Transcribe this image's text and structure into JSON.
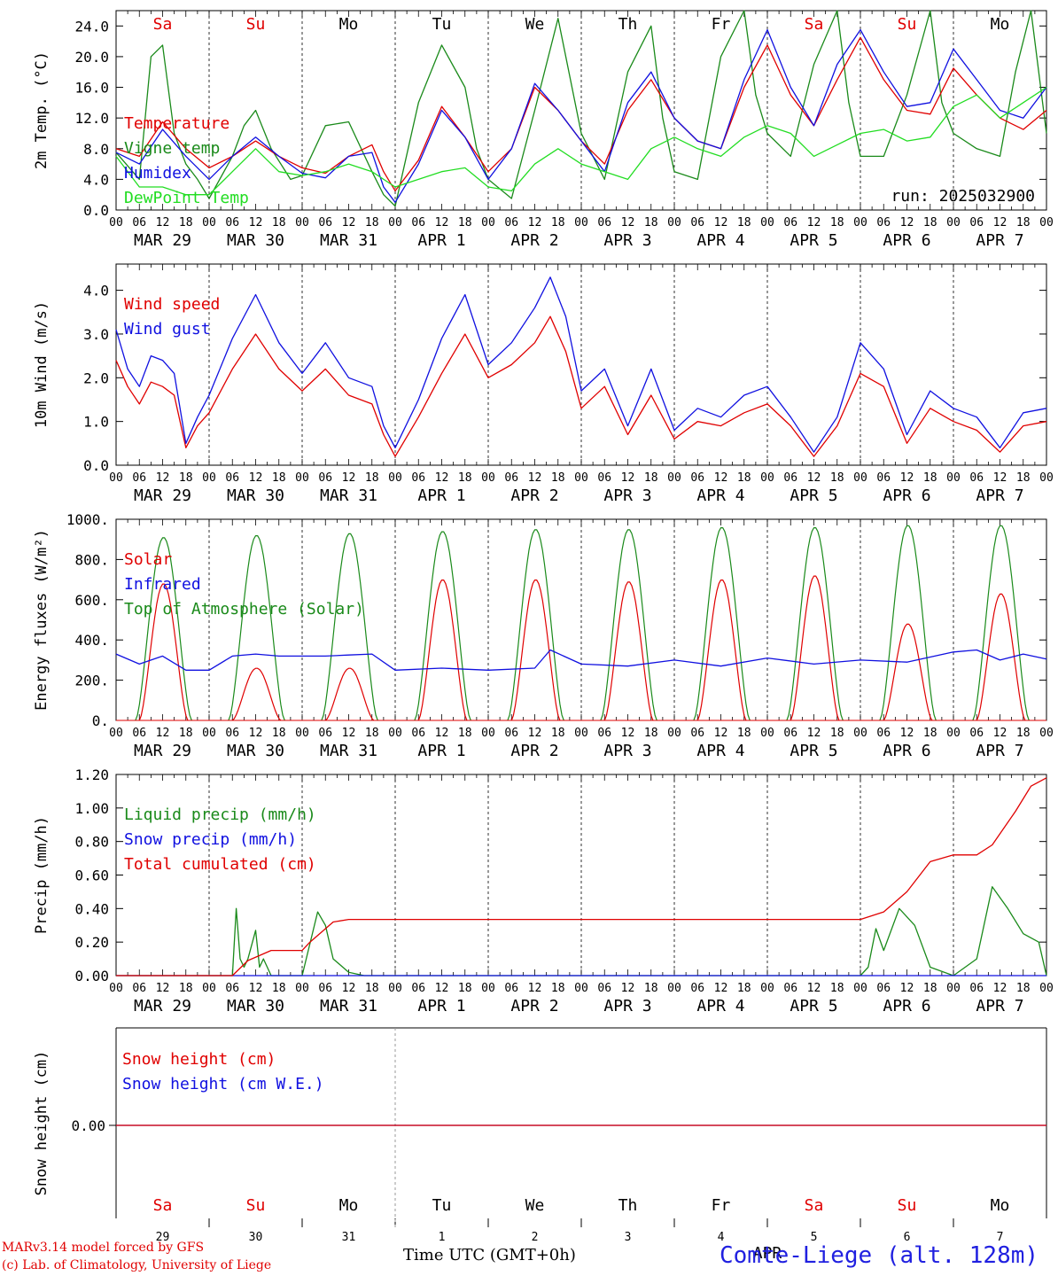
{
  "colors": {
    "red": "#e00000",
    "blue": "#1010e0",
    "darkgreen": "#1a8a1a",
    "lightgreen": "#22dd22",
    "weekend": "#e00000",
    "weekday": "#000000"
  },
  "run_label": "run: 2025032900",
  "hour_ticks": [
    "00",
    "06",
    "12",
    "18"
  ],
  "day_labels": [
    "MAR 29",
    "MAR 30",
    "MAR 31",
    "APR  1",
    "APR  2",
    "APR  3",
    "APR  4",
    "APR  5",
    "APR  6",
    "APR  7"
  ],
  "weekday_labels": [
    "Sa",
    "Su",
    "Mo",
    "Tu",
    "We",
    "Th",
    "Fr",
    "Sa",
    "Su",
    "Mo"
  ],
  "weekend_flags": [
    true,
    true,
    false,
    false,
    false,
    false,
    false,
    true,
    true,
    false
  ],
  "day_numbers": [
    "29",
    "30",
    "31",
    "1",
    "2",
    "3",
    "4",
    "5",
    "6",
    "7"
  ],
  "month_label": "APR",
  "xlabel": "Time UTC (GMT+0h)",
  "footer": {
    "line1": "MARv3.14 model forced by GFS",
    "line2": "(c) Lab. of Climatology, University of Liege",
    "station": "Comte-Liege (alt. 128m)"
  },
  "chart_data": [
    {
      "type": "line",
      "ylabel": "2m Temp. (°C)",
      "ylim": [
        0,
        26
      ],
      "yticks": [
        "0.0",
        "4.0",
        "8.0",
        "12.0",
        "16.0",
        "20.0",
        "24.0"
      ],
      "x_unit": "hours since 2025-03-29 00 UTC",
      "series": [
        {
          "name": "Vigne temp",
          "color": "darkgreen",
          "x": [
            0,
            6,
            9,
            12,
            15,
            18,
            21,
            24,
            30,
            33,
            36,
            40,
            45,
            48,
            54,
            60,
            66,
            69,
            72,
            78,
            84,
            90,
            93,
            96,
            102,
            108,
            114,
            120,
            126,
            132,
            138,
            141,
            144,
            150,
            156,
            162,
            165,
            168,
            174,
            180,
            186,
            189,
            192,
            198,
            204,
            210,
            213,
            216,
            222,
            228,
            232,
            236,
            240
          ],
          "y": [
            7.5,
            4.0,
            20.0,
            21.5,
            10.0,
            6.0,
            4.0,
            1.5,
            7.0,
            11.0,
            13.0,
            8.0,
            4.0,
            4.5,
            11.0,
            11.5,
            5.0,
            2.0,
            0.5,
            14.0,
            21.5,
            16.0,
            8.0,
            4.0,
            1.5,
            13.0,
            25.0,
            10.0,
            4.0,
            18.0,
            24.0,
            12.0,
            5.0,
            4.0,
            20.0,
            26.0,
            15.0,
            10.0,
            7.0,
            19.0,
            26.0,
            14.0,
            7.0,
            7.0,
            15.0,
            26.0,
            14.0,
            10.0,
            8.0,
            7.0,
            18.0,
            26.0,
            10.0
          ]
        },
        {
          "name": "Temperature",
          "color": "red",
          "x": [
            0,
            6,
            12,
            18,
            24,
            30,
            36,
            42,
            48,
            54,
            60,
            66,
            69,
            72,
            78,
            84,
            90,
            96,
            102,
            108,
            114,
            120,
            126,
            132,
            138,
            144,
            150,
            156,
            162,
            168,
            174,
            180,
            186,
            192,
            198,
            204,
            210,
            216,
            222,
            228,
            234,
            240
          ],
          "y": [
            8.0,
            7.0,
            11.5,
            8.0,
            5.5,
            7.0,
            9.0,
            7.0,
            5.5,
            4.8,
            7.0,
            8.5,
            5.0,
            2.5,
            6.5,
            13.5,
            9.5,
            5.0,
            8.0,
            16.0,
            13.0,
            9.0,
            6.0,
            13.0,
            17.0,
            12.0,
            9.0,
            8.0,
            16.0,
            21.5,
            15.0,
            11.0,
            17.0,
            22.5,
            17.0,
            13.0,
            12.5,
            18.5,
            15.0,
            12.0,
            10.5,
            13.0
          ]
        },
        {
          "name": "Humidex",
          "color": "blue",
          "x": [
            0,
            6,
            12,
            18,
            24,
            30,
            36,
            42,
            48,
            54,
            60,
            66,
            69,
            72,
            78,
            84,
            90,
            96,
            102,
            108,
            114,
            120,
            126,
            132,
            138,
            144,
            150,
            156,
            162,
            168,
            174,
            180,
            186,
            192,
            198,
            204,
            210,
            216,
            222,
            228,
            234,
            240
          ],
          "y": [
            7.5,
            6.0,
            10.5,
            7.0,
            4.0,
            7.0,
            9.5,
            7.0,
            4.8,
            4.2,
            7.0,
            7.5,
            3.0,
            1.0,
            6.0,
            13.0,
            9.5,
            4.0,
            8.0,
            16.5,
            13.0,
            9.0,
            5.0,
            14.0,
            18.0,
            12.0,
            9.0,
            8.0,
            17.0,
            23.5,
            16.0,
            11.0,
            19.0,
            23.5,
            18.0,
            13.5,
            14.0,
            21.0,
            17.0,
            13.0,
            12.0,
            16.0
          ]
        },
        {
          "name": "DewPoint Temp",
          "color": "lightgreen",
          "x": [
            0,
            6,
            12,
            18,
            24,
            30,
            36,
            42,
            48,
            54,
            60,
            66,
            72,
            78,
            84,
            90,
            96,
            102,
            108,
            114,
            120,
            126,
            132,
            138,
            144,
            150,
            156,
            162,
            168,
            174,
            180,
            186,
            192,
            198,
            204,
            210,
            216,
            222,
            228,
            234,
            240
          ],
          "y": [
            7.0,
            3.0,
            3.0,
            2.0,
            2.0,
            5.0,
            8.0,
            5.0,
            4.5,
            5.0,
            6.0,
            5.0,
            3.0,
            4.0,
            5.0,
            5.5,
            3.0,
            2.5,
            6.0,
            8.0,
            6.0,
            5.0,
            4.0,
            8.0,
            9.5,
            8.0,
            7.0,
            9.5,
            11.0,
            10.0,
            7.0,
            8.5,
            10.0,
            10.5,
            9.0,
            9.5,
            13.5,
            15.0,
            12.0,
            14.0,
            16.0
          ]
        }
      ]
    },
    {
      "type": "line",
      "ylabel": "10m Wind (m/s)",
      "ylim": [
        0,
        4.6
      ],
      "yticks": [
        "0.0",
        "1.0",
        "2.0",
        "3.0",
        "4.0"
      ],
      "x_unit": "hours since 2025-03-29 00 UTC",
      "series": [
        {
          "name": "Wind speed",
          "color": "red",
          "x": [
            0,
            3,
            6,
            9,
            12,
            15,
            18,
            21,
            24,
            30,
            36,
            42,
            48,
            54,
            60,
            66,
            69,
            72,
            78,
            84,
            90,
            96,
            102,
            108,
            112,
            116,
            120,
            126,
            132,
            138,
            144,
            150,
            156,
            162,
            168,
            174,
            180,
            186,
            192,
            198,
            204,
            210,
            216,
            222,
            228,
            234,
            240
          ],
          "y": [
            2.4,
            1.8,
            1.4,
            1.9,
            1.8,
            1.6,
            0.4,
            0.9,
            1.2,
            2.2,
            3.0,
            2.2,
            1.7,
            2.2,
            1.6,
            1.4,
            0.7,
            0.2,
            1.1,
            2.1,
            3.0,
            2.0,
            2.3,
            2.8,
            3.4,
            2.6,
            1.3,
            1.8,
            0.7,
            1.6,
            0.6,
            1.0,
            0.9,
            1.2,
            1.4,
            0.9,
            0.2,
            0.9,
            2.1,
            1.8,
            0.5,
            1.3,
            1.0,
            0.8,
            0.3,
            0.9,
            1.0
          ]
        },
        {
          "name": "Wind gust",
          "color": "blue",
          "x": [
            0,
            3,
            6,
            9,
            12,
            15,
            18,
            21,
            24,
            30,
            36,
            42,
            48,
            54,
            60,
            66,
            69,
            72,
            78,
            84,
            90,
            96,
            102,
            108,
            112,
            116,
            120,
            126,
            132,
            138,
            144,
            150,
            156,
            162,
            168,
            174,
            180,
            186,
            192,
            198,
            204,
            210,
            216,
            222,
            228,
            234,
            240
          ],
          "y": [
            3.1,
            2.2,
            1.8,
            2.5,
            2.4,
            2.1,
            0.5,
            1.1,
            1.6,
            2.9,
            3.9,
            2.8,
            2.1,
            2.8,
            2.0,
            1.8,
            0.9,
            0.4,
            1.5,
            2.9,
            3.9,
            2.3,
            2.8,
            3.6,
            4.3,
            3.4,
            1.7,
            2.2,
            0.9,
            2.2,
            0.8,
            1.3,
            1.1,
            1.6,
            1.8,
            1.1,
            0.3,
            1.1,
            2.8,
            2.2,
            0.7,
            1.7,
            1.3,
            1.1,
            0.4,
            1.2,
            1.3
          ]
        }
      ]
    },
    {
      "type": "line",
      "ylabel": "Energy fluxes (W/m²)",
      "ylim": [
        0,
        1000
      ],
      "yticks": [
        "0.",
        "200.",
        "400.",
        "600.",
        "800.",
        "1000."
      ],
      "x_unit": "hours since 2025-03-29 00 UTC",
      "series": [
        {
          "name": "Solar",
          "color": "red",
          "peaks": [
            680,
            260,
            260,
            700,
            700,
            690,
            700,
            720,
            480,
            630
          ]
        },
        {
          "name": "Infrared",
          "color": "blue",
          "x": [
            0,
            6,
            12,
            18,
            24,
            30,
            36,
            42,
            48,
            54,
            60,
            66,
            72,
            84,
            96,
            108,
            112,
            120,
            132,
            144,
            156,
            168,
            180,
            192,
            204,
            216,
            222,
            228,
            234,
            240
          ],
          "y": [
            330,
            280,
            320,
            250,
            250,
            320,
            330,
            320,
            320,
            320,
            325,
            330,
            250,
            260,
            250,
            260,
            350,
            280,
            270,
            300,
            270,
            310,
            280,
            300,
            290,
            340,
            350,
            300,
            330,
            305
          ]
        },
        {
          "name": "Top of Atmosphere (Solar)",
          "color": "darkgreen",
          "peaks": [
            910,
            920,
            930,
            940,
            950,
            950,
            960,
            960,
            970,
            970
          ]
        }
      ]
    },
    {
      "type": "line",
      "ylabel": "Precip (mm/h)",
      "ylim": [
        0,
        1.2
      ],
      "yticks": [
        "0.00",
        "0.20",
        "0.40",
        "0.60",
        "0.80",
        "1.00",
        "1.20"
      ],
      "x_unit": "hours since 2025-03-29 00 UTC",
      "series": [
        {
          "name": "Liquid precip (mm/h)",
          "color": "darkgreen",
          "x": [
            0,
            30,
            31,
            32,
            33,
            34,
            36,
            37,
            38,
            40,
            48,
            52,
            54,
            56,
            60,
            64,
            72,
            192,
            194,
            196,
            198,
            202,
            206,
            210,
            216,
            222,
            226,
            230,
            234,
            238,
            240
          ],
          "y": [
            0,
            0,
            0.4,
            0.1,
            0.05,
            0.1,
            0.27,
            0.05,
            0.1,
            0,
            0,
            0.38,
            0.3,
            0.1,
            0.02,
            0,
            0,
            0,
            0.05,
            0.28,
            0.15,
            0.4,
            0.3,
            0.05,
            0,
            0.1,
            0.53,
            0.4,
            0.25,
            0.2,
            0
          ]
        },
        {
          "name": "Snow precip (mm/h)",
          "color": "blue",
          "x": [
            0,
            240
          ],
          "y": [
            0,
            0
          ]
        },
        {
          "name": "Total cumulated (cm)",
          "color": "red",
          "x": [
            0,
            30,
            34,
            40,
            48,
            50,
            56,
            60,
            72,
            192,
            198,
            204,
            210,
            216,
            222,
            226,
            232,
            236,
            240
          ],
          "y": [
            0,
            0,
            0.09,
            0.15,
            0.15,
            0.2,
            0.32,
            0.335,
            0.335,
            0.335,
            0.38,
            0.5,
            0.68,
            0.72,
            0.72,
            0.78,
            0.98,
            1.13,
            1.18
          ]
        }
      ]
    },
    {
      "type": "line",
      "ylabel": "Snow height (cm)",
      "ytick": "0.00",
      "x_unit": "hours since 2025-03-29 00 UTC",
      "series": [
        {
          "name": "Snow height (cm)",
          "color": "red",
          "x": [
            0,
            240
          ],
          "y": [
            0,
            0
          ]
        },
        {
          "name": "Snow height (cm W.E.)",
          "color": "blue",
          "x": [
            0,
            240
          ],
          "y": [
            0,
            0
          ]
        }
      ]
    }
  ]
}
